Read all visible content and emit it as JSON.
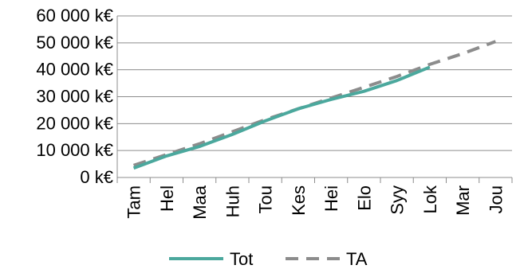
{
  "chart_data": {
    "type": "line",
    "categories": [
      "Tam",
      "Hel",
      "Maa",
      "Huh",
      "Tou",
      "Kes",
      "Hei",
      "Elo",
      "Syy",
      "Lok",
      "Mar",
      "Jou"
    ],
    "y_ticks": [
      0,
      10000,
      20000,
      30000,
      40000,
      50000,
      60000
    ],
    "y_tick_labels": [
      "0 k€",
      "10 000 k€",
      "20 000 k€",
      "30 000 k€",
      "40 000 k€",
      "50 000 k€",
      "60 000 k€"
    ],
    "ylim": [
      0,
      60000
    ],
    "grid": true,
    "legend_position": "bottom",
    "series": [
      {
        "name": "Tot",
        "color": "#4ba89d",
        "style": "solid",
        "values": [
          3500,
          8000,
          11500,
          16000,
          21000,
          25500,
          29000,
          32000,
          36000,
          41000,
          null,
          null
        ]
      },
      {
        "name": "TA",
        "color": "#8c8c8c",
        "style": "dashed",
        "values": [
          4500,
          8500,
          12500,
          17000,
          21500,
          25500,
          29500,
          33500,
          37500,
          42000,
          46000,
          50500
        ]
      }
    ]
  }
}
